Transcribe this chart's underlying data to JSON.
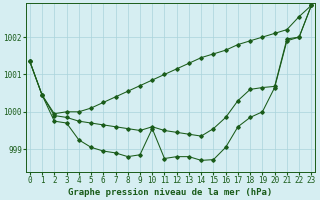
{
  "title": "Graphe pression niveau de la mer (hPa)",
  "background_color": "#d6eef2",
  "grid_color": "#aad4dc",
  "line_color": "#1a5c1a",
  "x_ticks": [
    0,
    1,
    2,
    3,
    4,
    5,
    6,
    7,
    8,
    9,
    10,
    11,
    12,
    13,
    14,
    15,
    16,
    17,
    18,
    19,
    20,
    21,
    22,
    23
  ],
  "y_ticks": [
    999,
    1000,
    1001,
    1002
  ],
  "ylim": [
    998.4,
    1002.9
  ],
  "xlim": [
    -0.3,
    23.3
  ],
  "series": [
    [
      1001.35,
      1000.45,
      999.95,
      1000.0,
      1000.0,
      1000.1,
      1000.25,
      1000.4,
      1000.55,
      1000.7,
      1000.85,
      1001.0,
      1001.15,
      1001.3,
      1001.45,
      1001.55,
      1001.65,
      1001.8,
      1001.9,
      1002.0,
      1002.1,
      1002.2,
      1002.55,
      1002.85
    ],
    [
      1001.35,
      1000.45,
      999.9,
      999.85,
      999.75,
      999.7,
      999.65,
      999.6,
      999.55,
      999.5,
      999.6,
      999.5,
      999.45,
      999.4,
      999.35,
      999.55,
      999.85,
      1000.3,
      1000.6,
      1000.65,
      1000.68,
      1001.95,
      1002.0,
      1002.85
    ],
    [
      1001.35,
      1000.45,
      999.75,
      999.7,
      999.25,
      999.05,
      998.95,
      998.9,
      998.8,
      998.85,
      999.55,
      998.75,
      998.8,
      998.8,
      998.7,
      998.72,
      999.05,
      999.6,
      999.85,
      1000.0,
      1000.65,
      1001.9,
      1002.0,
      1002.85
    ]
  ],
  "xlabel_fontsize": 6.5,
  "tick_fontsize": 5.5
}
